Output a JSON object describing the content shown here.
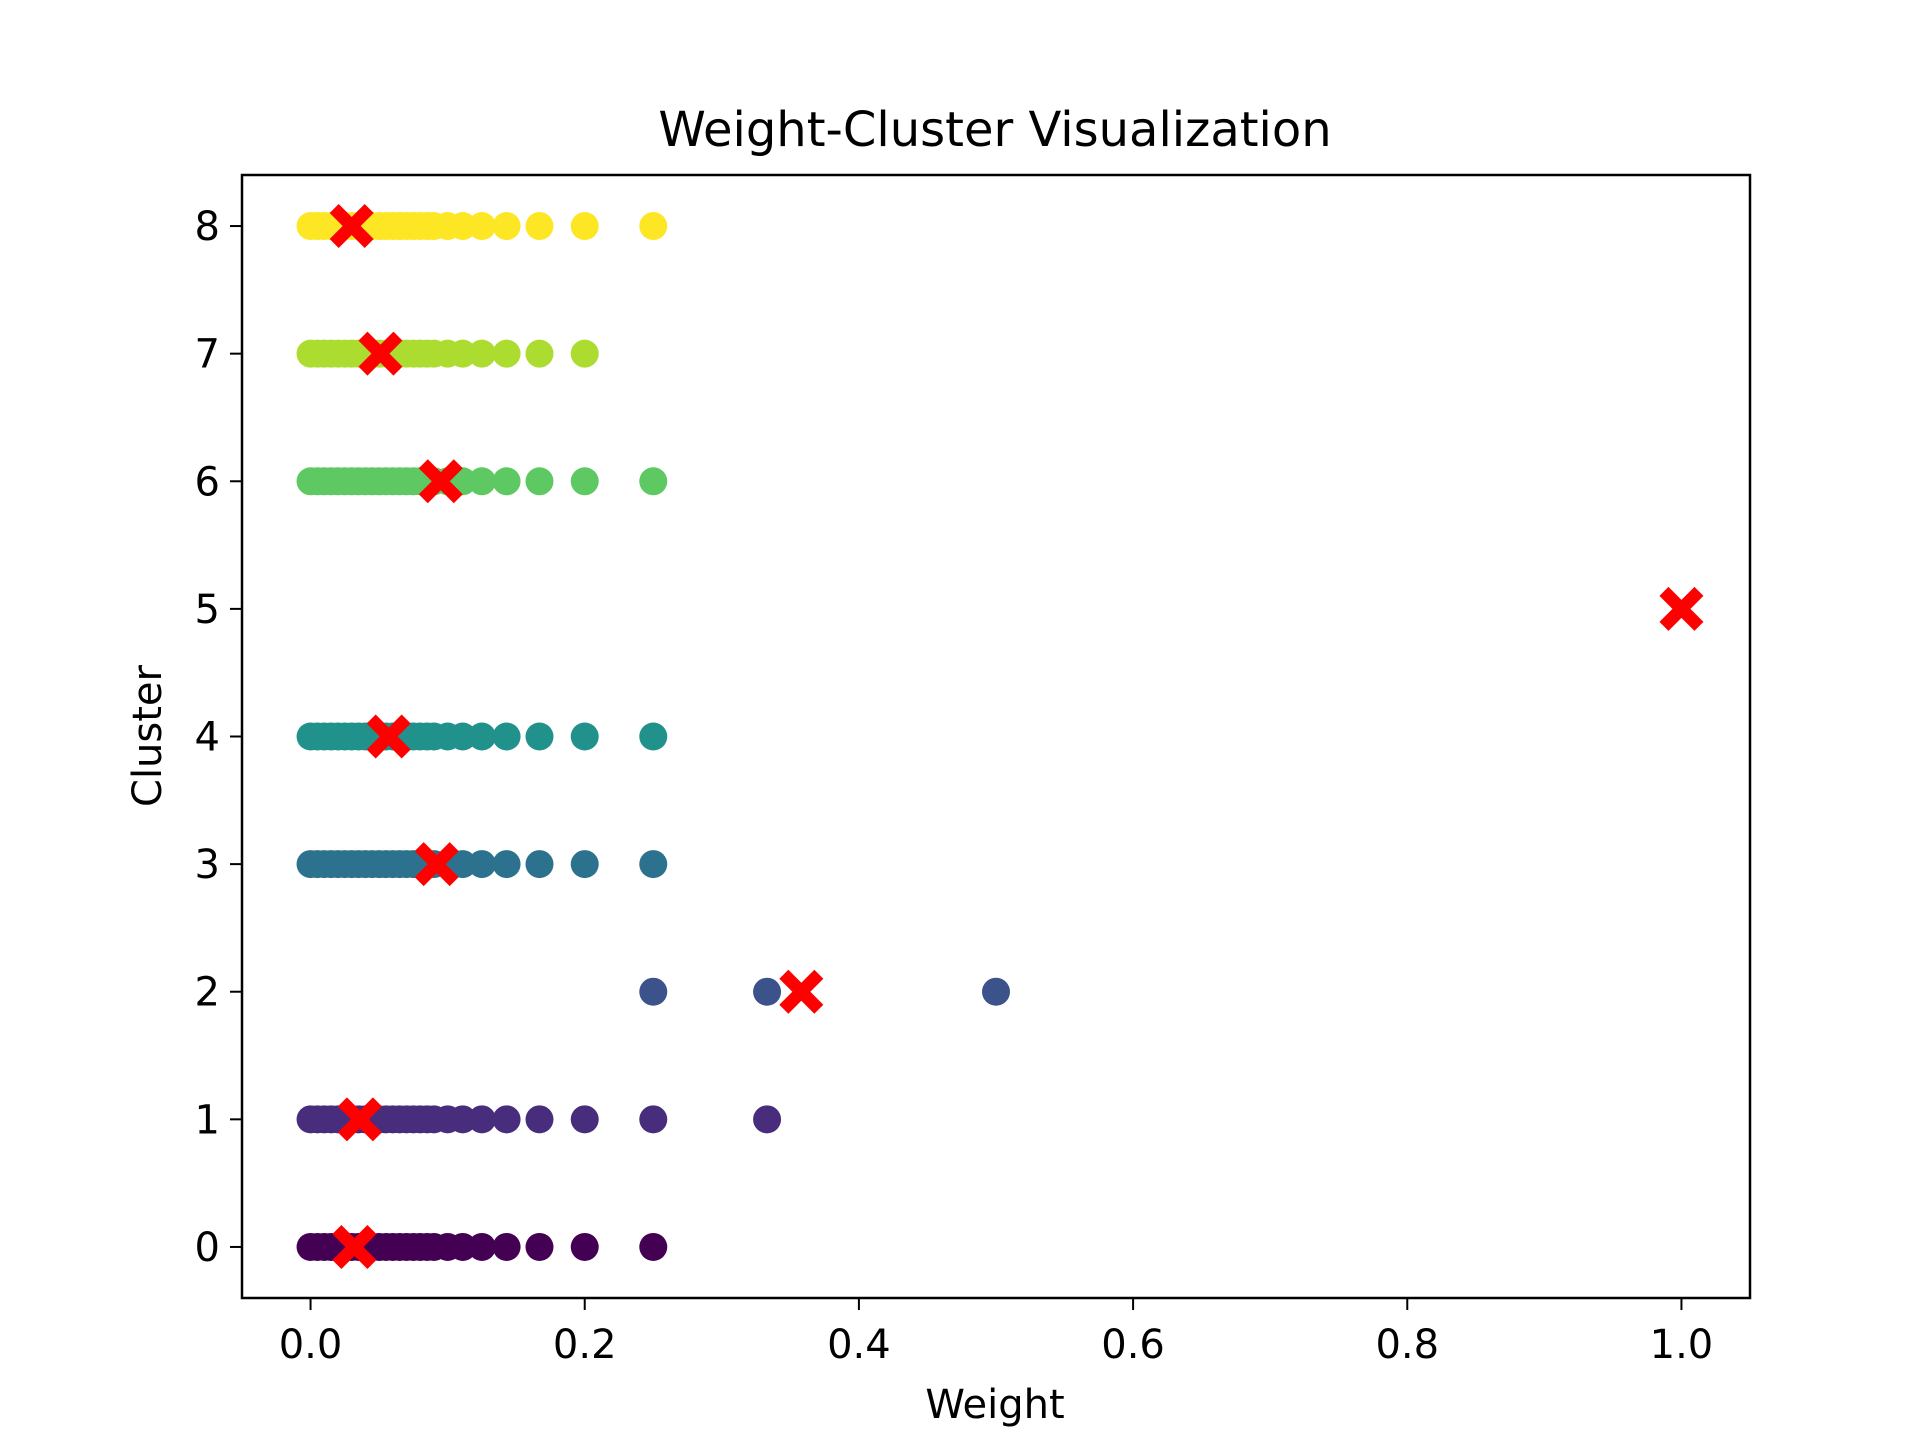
{
  "chart_data": {
    "type": "scatter",
    "title": "Weight-Cluster Visualization",
    "xlabel": "Weight",
    "ylabel": "Cluster",
    "xlim": [
      -0.05,
      1.05
    ],
    "ylim": [
      -0.4,
      8.4
    ],
    "xticks": [
      0.0,
      0.2,
      0.4,
      0.6,
      0.8,
      1.0
    ],
    "xtick_labels": [
      "0.0",
      "0.2",
      "0.4",
      "0.6",
      "0.8",
      "1.0"
    ],
    "yticks": [
      0,
      1,
      2,
      3,
      4,
      5,
      6,
      7,
      8
    ],
    "ytick_labels": [
      "0",
      "1",
      "2",
      "3",
      "4",
      "5",
      "6",
      "7",
      "8"
    ],
    "grid": false,
    "colormap": "viridis",
    "cluster_colors": {
      "0": "#440154",
      "1": "#472d7b",
      "2": "#3b528b",
      "3": "#2c728e",
      "4": "#21918c",
      "6": "#5ec962",
      "7": "#addc30",
      "8": "#fde725"
    },
    "centroid_color": "#ff0000",
    "centroid_marker": "X",
    "series": [
      {
        "cluster": 0,
        "points": [
          0.0,
          0.005,
          0.01,
          0.015,
          0.02,
          0.025,
          0.03,
          0.035,
          0.04,
          0.045,
          0.05,
          0.055,
          0.06,
          0.065,
          0.07,
          0.075,
          0.08,
          0.085,
          0.09,
          0.1,
          0.111,
          0.125,
          0.143,
          0.167,
          0.2,
          0.25
        ]
      },
      {
        "cluster": 1,
        "points": [
          0.0,
          0.005,
          0.01,
          0.015,
          0.02,
          0.025,
          0.03,
          0.035,
          0.04,
          0.045,
          0.05,
          0.055,
          0.06,
          0.065,
          0.07,
          0.075,
          0.08,
          0.085,
          0.09,
          0.1,
          0.111,
          0.125,
          0.143,
          0.167,
          0.2,
          0.25,
          0.333
        ]
      },
      {
        "cluster": 2,
        "points": [
          0.25,
          0.333,
          0.5
        ]
      },
      {
        "cluster": 3,
        "points": [
          0.0,
          0.005,
          0.01,
          0.015,
          0.02,
          0.025,
          0.03,
          0.035,
          0.04,
          0.045,
          0.05,
          0.055,
          0.06,
          0.065,
          0.07,
          0.075,
          0.08,
          0.085,
          0.09,
          0.1,
          0.111,
          0.125,
          0.143,
          0.167,
          0.2,
          0.25
        ]
      },
      {
        "cluster": 4,
        "points": [
          0.0,
          0.005,
          0.01,
          0.015,
          0.02,
          0.025,
          0.03,
          0.035,
          0.04,
          0.045,
          0.05,
          0.055,
          0.06,
          0.065,
          0.07,
          0.075,
          0.08,
          0.085,
          0.09,
          0.1,
          0.111,
          0.125,
          0.143,
          0.167,
          0.2,
          0.25
        ]
      },
      {
        "cluster": 6,
        "points": [
          0.0,
          0.005,
          0.01,
          0.015,
          0.02,
          0.025,
          0.03,
          0.035,
          0.04,
          0.045,
          0.05,
          0.055,
          0.06,
          0.065,
          0.07,
          0.075,
          0.08,
          0.085,
          0.09,
          0.1,
          0.111,
          0.125,
          0.143,
          0.167,
          0.2,
          0.25
        ]
      },
      {
        "cluster": 7,
        "points": [
          0.0,
          0.005,
          0.01,
          0.015,
          0.02,
          0.025,
          0.03,
          0.035,
          0.04,
          0.045,
          0.05,
          0.055,
          0.06,
          0.065,
          0.07,
          0.075,
          0.08,
          0.085,
          0.09,
          0.1,
          0.111,
          0.125,
          0.143,
          0.167,
          0.2
        ]
      },
      {
        "cluster": 8,
        "points": [
          0.0,
          0.005,
          0.01,
          0.015,
          0.02,
          0.025,
          0.03,
          0.035,
          0.04,
          0.045,
          0.05,
          0.055,
          0.06,
          0.065,
          0.07,
          0.075,
          0.08,
          0.085,
          0.09,
          0.1,
          0.111,
          0.125,
          0.143,
          0.167,
          0.2,
          0.25
        ]
      }
    ],
    "centroids": [
      {
        "cluster": 0,
        "x": 0.032,
        "y": 0
      },
      {
        "cluster": 1,
        "x": 0.036,
        "y": 1
      },
      {
        "cluster": 2,
        "x": 0.358,
        "y": 2
      },
      {
        "cluster": 3,
        "x": 0.092,
        "y": 3
      },
      {
        "cluster": 4,
        "x": 0.057,
        "y": 4
      },
      {
        "cluster": 5,
        "x": 1.0,
        "y": 5
      },
      {
        "cluster": 6,
        "x": 0.095,
        "y": 6
      },
      {
        "cluster": 7,
        "x": 0.051,
        "y": 7
      },
      {
        "cluster": 8,
        "x": 0.03,
        "y": 8
      }
    ]
  }
}
